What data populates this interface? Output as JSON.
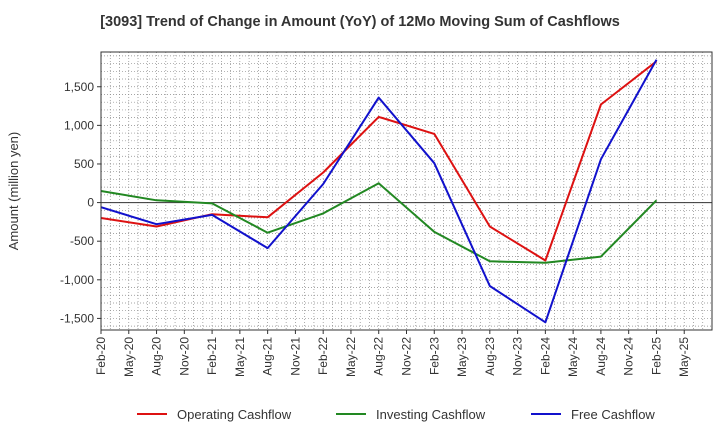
{
  "chart_data": {
    "type": "line",
    "title": "[3093]  Trend of Change in Amount (YoY) of 12Mo Moving Sum of Cashflows",
    "xlabel": "",
    "ylabel": "Amount (million yen)",
    "ylim": [
      -1650,
      1950
    ],
    "yticks": [
      -1500,
      -1000,
      -500,
      0,
      500,
      1000,
      1500
    ],
    "ytick_labels": [
      "-1,500",
      "-1,000",
      "-500",
      "0",
      "500",
      "1,000",
      "1,500"
    ],
    "categories": [
      "Feb-20",
      "May-20",
      "Aug-20",
      "Nov-20",
      "Feb-21",
      "May-21",
      "Aug-21",
      "Nov-21",
      "Feb-22",
      "May-22",
      "Aug-22",
      "Nov-22",
      "Feb-23",
      "May-23",
      "Aug-23",
      "Nov-23",
      "Feb-24",
      "May-24",
      "Aug-24",
      "Nov-24",
      "Feb-25",
      "May-25"
    ],
    "grid": true,
    "legend_position": "bottom",
    "series": [
      {
        "name": "Operating Cashflow",
        "color": "#dd1111",
        "points": [
          {
            "x": "Feb-20",
            "y": -200
          },
          {
            "x": "Aug-20",
            "y": -310
          },
          {
            "x": "Feb-21",
            "y": -150
          },
          {
            "x": "Aug-21",
            "y": -190
          },
          {
            "x": "Feb-22",
            "y": 390
          },
          {
            "x": "Aug-22",
            "y": 1110
          },
          {
            "x": "Feb-23",
            "y": 890
          },
          {
            "x": "Aug-23",
            "y": -310
          },
          {
            "x": "Feb-24",
            "y": -750
          },
          {
            "x": "Aug-24",
            "y": 1270
          },
          {
            "x": "Feb-25",
            "y": 1830
          }
        ]
      },
      {
        "name": "Investing Cashflow",
        "color": "#228822",
        "points": [
          {
            "x": "Feb-20",
            "y": 150
          },
          {
            "x": "Aug-20",
            "y": 30
          },
          {
            "x": "Feb-21",
            "y": -10
          },
          {
            "x": "Aug-21",
            "y": -390
          },
          {
            "x": "Feb-22",
            "y": -140
          },
          {
            "x": "Aug-22",
            "y": 250
          },
          {
            "x": "Feb-23",
            "y": -380
          },
          {
            "x": "Aug-23",
            "y": -760
          },
          {
            "x": "Feb-24",
            "y": -780
          },
          {
            "x": "Aug-24",
            "y": -700
          },
          {
            "x": "Feb-25",
            "y": 30
          }
        ]
      },
      {
        "name": "Free Cashflow",
        "color": "#1111cc",
        "points": [
          {
            "x": "Feb-20",
            "y": -60
          },
          {
            "x": "Aug-20",
            "y": -280
          },
          {
            "x": "Feb-21",
            "y": -160
          },
          {
            "x": "Aug-21",
            "y": -590
          },
          {
            "x": "Feb-22",
            "y": 240
          },
          {
            "x": "Aug-22",
            "y": 1360
          },
          {
            "x": "Feb-23",
            "y": 510
          },
          {
            "x": "Aug-23",
            "y": -1080
          },
          {
            "x": "Feb-24",
            "y": -1550
          },
          {
            "x": "Aug-24",
            "y": 560
          },
          {
            "x": "Feb-25",
            "y": 1850
          }
        ]
      }
    ]
  }
}
